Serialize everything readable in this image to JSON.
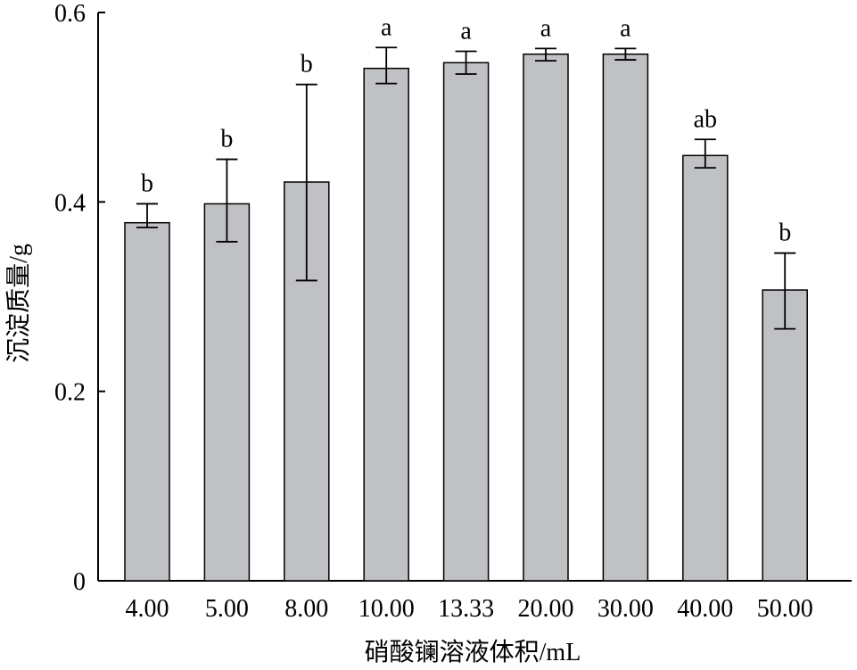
{
  "chart_data": {
    "type": "bar",
    "title": "",
    "xlabel": "硝酸镧溶液体积/mL",
    "ylabel": "沉淀质量/g",
    "ylim": [
      0,
      0.6
    ],
    "yticks": [
      {
        "value": 0,
        "label": "0"
      },
      {
        "value": 0.2,
        "label": "0.2"
      },
      {
        "value": 0.4,
        "label": "0.4"
      },
      {
        "value": 0.6,
        "label": "0.6"
      }
    ],
    "grid": false,
    "categories": [
      "4.00",
      "5.00",
      "8.00",
      "10.00",
      "13.33",
      "20.00",
      "30.00",
      "40.00",
      "50.00"
    ],
    "values": [
      0.378,
      0.398,
      0.421,
      0.541,
      0.547,
      0.556,
      0.556,
      0.449,
      0.307
    ],
    "error_low": [
      0.373,
      0.358,
      0.317,
      0.525,
      0.535,
      0.549,
      0.55,
      0.436,
      0.266
    ],
    "error_high": [
      0.398,
      0.445,
      0.524,
      0.563,
      0.559,
      0.562,
      0.562,
      0.466,
      0.346
    ],
    "significance": [
      "b",
      "b",
      "b",
      "a",
      "a",
      "a",
      "a",
      "ab",
      "b"
    ],
    "bar_color": "#bfc1c4",
    "bar_edge_color": "#000000"
  }
}
